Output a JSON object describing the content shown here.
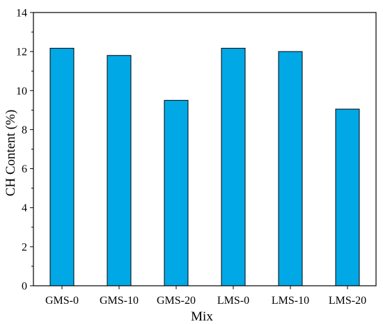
{
  "chart_data": {
    "type": "bar",
    "title": "",
    "xlabel": "Mix",
    "ylabel": "CH Content (%)",
    "categories": [
      "GMS-0",
      "GMS-10",
      "GMS-20",
      "LMS-0",
      "LMS-10",
      "LMS-20"
    ],
    "values": [
      12.17,
      11.8,
      9.5,
      12.17,
      12.0,
      9.05
    ],
    "ylim": [
      0,
      14
    ],
    "yticks": [
      "0",
      "2",
      "4",
      "6",
      "8",
      "10",
      "12",
      "14"
    ],
    "grid": false,
    "legend": "none",
    "bar_color": "#00A8E6",
    "bar_edge_color": "#000000"
  }
}
